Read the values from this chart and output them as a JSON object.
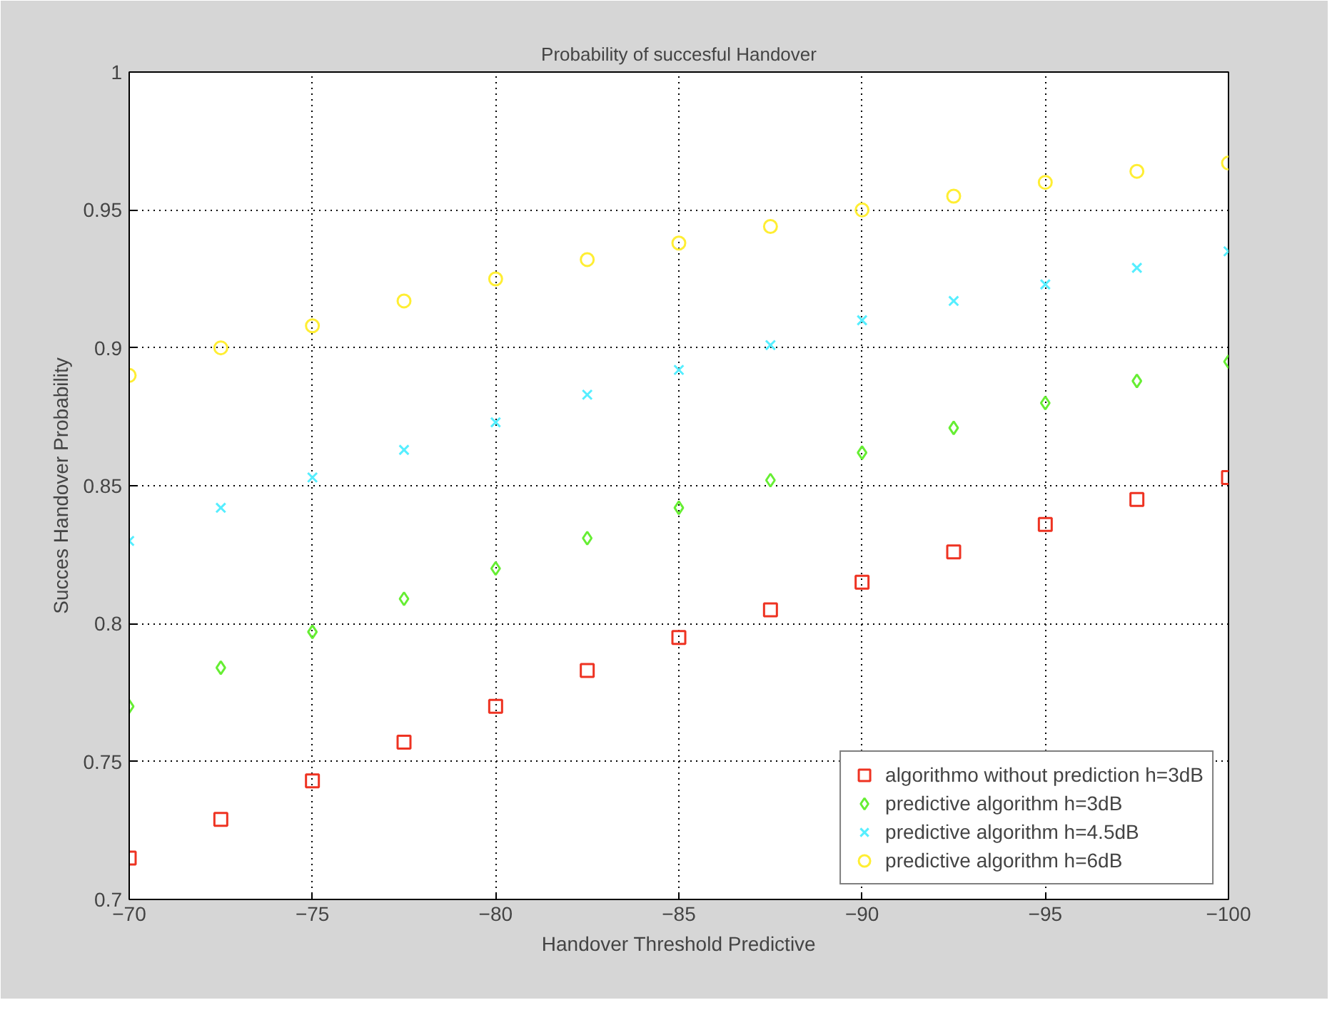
{
  "chart_data": {
    "type": "scatter",
    "title": "Probability of succesful Handover",
    "xlabel": "Handover Threshold Predictive",
    "ylabel": "Succes Handover Probability",
    "x": [
      -70,
      -72.5,
      -75,
      -77.5,
      -80,
      -82.5,
      -85,
      -87.5,
      -90,
      -92.5,
      -95,
      -97.5,
      -100
    ],
    "series": [
      {
        "name": "algorithmo without prediction h=3dB",
        "color": "#ee3322",
        "marker": "square",
        "values": [
          0.715,
          0.729,
          0.743,
          0.757,
          0.77,
          0.783,
          0.795,
          0.805,
          0.815,
          0.826,
          0.836,
          0.845,
          0.853
        ]
      },
      {
        "name": "predictive algorithm h=3dB",
        "color": "#66ee33",
        "marker": "diamond",
        "values": [
          0.77,
          0.784,
          0.797,
          0.809,
          0.82,
          0.831,
          0.842,
          0.852,
          0.862,
          0.871,
          0.88,
          0.888,
          0.895
        ]
      },
      {
        "name": "predictive algorithm h=4.5dB",
        "color": "#55eeff",
        "marker": "cross",
        "values": [
          0.83,
          0.842,
          0.853,
          0.863,
          0.873,
          0.883,
          0.892,
          0.901,
          0.91,
          0.917,
          0.923,
          0.929,
          0.935
        ]
      },
      {
        "name": "predictive algorithm h=6dB",
        "color": "#ffee33",
        "marker": "circle",
        "values": [
          0.89,
          0.9,
          0.908,
          0.917,
          0.925,
          0.932,
          0.938,
          0.944,
          0.95,
          0.955,
          0.96,
          0.964,
          0.967
        ]
      }
    ],
    "xlim": [
      -70,
      -100
    ],
    "xticks": [
      -70,
      -75,
      -80,
      -85,
      -90,
      -95,
      -100
    ],
    "ylim": [
      0.7,
      1
    ],
    "yticks": [
      0.7,
      0.75,
      0.8,
      0.85,
      0.9,
      0.95,
      1
    ],
    "grid": true,
    "legend": "bottom right"
  }
}
